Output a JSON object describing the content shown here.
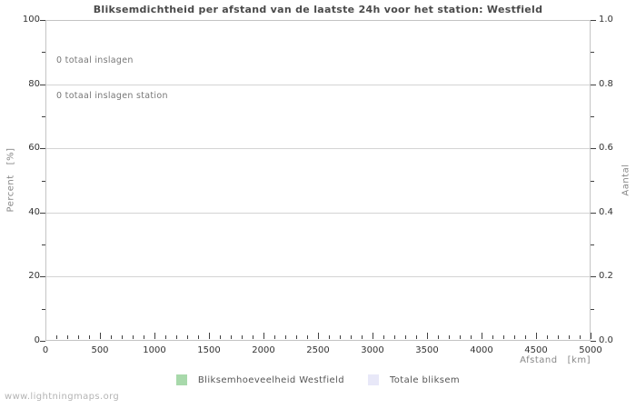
{
  "watermark": "www.lightningmaps.org",
  "colors": {
    "frame": "#c4c4c4",
    "grid": "#d4d4d4",
    "tick": "#404040",
    "title_text": "#4a4a4a",
    "axis_text": "#888888",
    "annotation_text": "#777777",
    "series_westfield": "#a8d9ab",
    "series_total": "#e8e8f8"
  },
  "chart_data": {
    "type": "area",
    "title": "Bliksemdichtheid per afstand van de laatste 24h voor het station: Westfield",
    "annotations": [
      "0 totaal inslagen",
      "0 totaal inslagen station"
    ],
    "x_axis": {
      "label": "Afstand   [km]",
      "range": [
        0,
        5000
      ],
      "major_ticks": [
        0,
        500,
        1000,
        1500,
        2000,
        2500,
        3000,
        3500,
        4000,
        4500,
        5000
      ],
      "minor_tick_step": 100
    },
    "y_axis_left": {
      "label": "Percent   [%]",
      "range": [
        0,
        100
      ],
      "major_ticks": [
        0,
        20,
        40,
        60,
        80,
        100
      ],
      "minor_tick_step": 10
    },
    "y_axis_right": {
      "label": "Aantal",
      "range": [
        0,
        1
      ],
      "major_ticks": [
        0,
        0.2,
        0.4,
        0.6,
        0.8,
        1
      ],
      "tick_labels": [
        "0.0",
        "0.2",
        "0.4",
        "0.6",
        "0.8",
        "1.0"
      ],
      "minor_tick_step": 0.1
    },
    "grid": "horizontal-major-only",
    "legend_position": "bottom-center",
    "series": [
      {
        "name": "Bliksemhoeveelheid Westfield",
        "color": "#a8d9ab",
        "values": []
      },
      {
        "name": "Totale bliksem",
        "color": "#e8e8f8",
        "values": []
      }
    ],
    "total_strikes": 0,
    "total_strikes_station": 0
  }
}
